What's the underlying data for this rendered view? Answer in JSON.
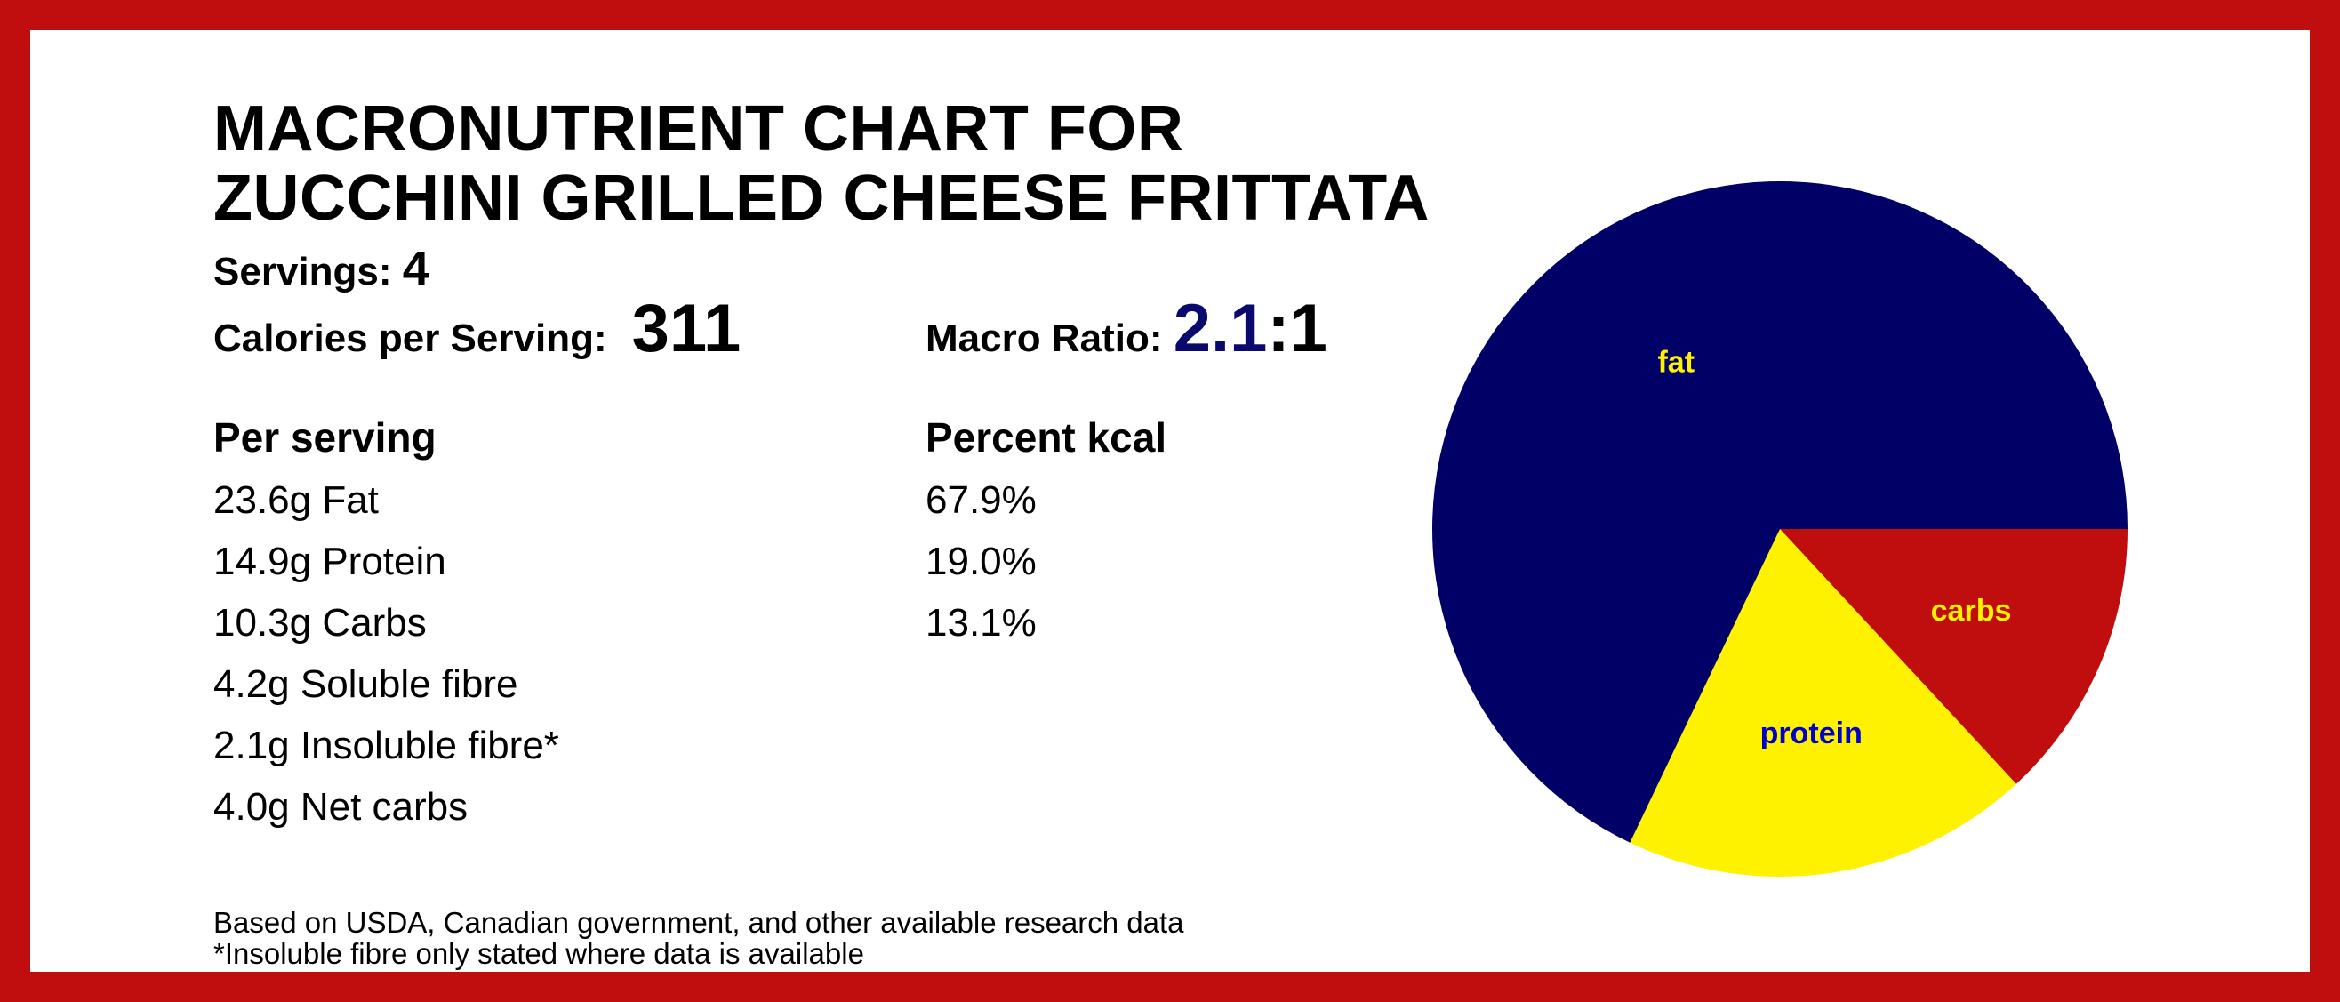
{
  "title": {
    "line1": "MACRONUTRIENT CHART FOR",
    "line2": "ZUCCHINI GRILLED CHEESE FRITTATA"
  },
  "servings": {
    "label": "Servings:",
    "value": "4"
  },
  "calories": {
    "label": "Calories per Serving:",
    "value": "311"
  },
  "macro_ratio": {
    "label": "Macro Ratio:",
    "numerator": "2.1",
    "denominator": ":1"
  },
  "per_serving": {
    "heading": "Per serving",
    "items": [
      "23.6g Fat",
      "14.9g Protein",
      "10.3g Carbs",
      "4.2g Soluble fibre",
      "2.1g Insoluble fibre*",
      "4.0g Net carbs"
    ]
  },
  "percent_kcal": {
    "heading": "Percent kcal",
    "items": [
      "67.9%",
      "19.0%",
      "13.1%"
    ]
  },
  "footnotes": [
    "Based on USDA, Canadian government, and other available research data",
    "*Insoluble fibre only stated where data is available"
  ],
  "colors": {
    "border": "#c00d0d",
    "fat": "#000066",
    "protein": "#fff200",
    "carbs": "#c00d0d",
    "ratio_accent": "#0a0a6e"
  },
  "chart_data": {
    "type": "pie",
    "title": "",
    "slices": [
      {
        "label": "fat",
        "value": 67.9,
        "color": "#000066",
        "label_color": "#fff200"
      },
      {
        "label": "carbs",
        "value": 13.1,
        "color": "#c00d0d",
        "label_color": "#fff200"
      },
      {
        "label": "protein",
        "value": 19.0,
        "color": "#fff200",
        "label_color": "#0000cc"
      }
    ],
    "start": "3 o'clock",
    "direction": "clockwise-from-carbs"
  }
}
